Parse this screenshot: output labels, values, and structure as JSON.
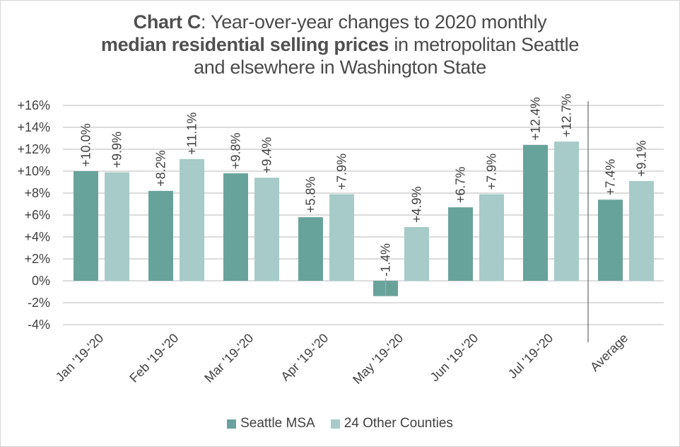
{
  "title": {
    "bold1": "Chart C",
    "rest1": ": Year-over-year changes to 2020 monthly",
    "bold2": "median residential selling prices",
    "rest2": " in metropolitan Seattle",
    "line3": "and elsewhere in Washington State"
  },
  "chart_data": {
    "type": "bar",
    "title": "Chart C: Year-over-year changes to 2020 monthly median residential selling prices in metropolitan Seattle and elsewhere in Washington State",
    "xlabel": "",
    "ylabel": "",
    "categories": [
      "Jan '19-'20",
      "Feb '19-'20",
      "Mar '19-'20",
      "Apr '19-'20",
      "May '19-'20",
      "Jun '19-'20",
      "Jul '19-'20",
      "Average"
    ],
    "series": [
      {
        "name": "Seattle MSA",
        "color": "#68A39B",
        "values": [
          10.0,
          8.2,
          9.8,
          5.8,
          -1.4,
          6.7,
          12.4,
          7.4
        ],
        "labels": [
          "+10.0%",
          "+8.2%",
          "+9.8%",
          "+5.8%",
          "-1.4%",
          "+6.7%",
          "+12.4%",
          "+7.4%"
        ]
      },
      {
        "name": "24 Other Counties",
        "color": "#A6CBC8",
        "values": [
          9.9,
          11.1,
          9.4,
          7.9,
          4.9,
          7.9,
          12.7,
          9.1
        ],
        "labels": [
          "+9.9%",
          "+11.1%",
          "+9.4%",
          "+7.9%",
          "+4.9%",
          "+7.9%",
          "+12.7%",
          "+9.1%"
        ]
      }
    ],
    "ylim": [
      -4,
      16
    ],
    "yticks": [
      16,
      14,
      12,
      10,
      8,
      6,
      4,
      2,
      0,
      -2,
      -4
    ],
    "ytick_labels": [
      "+16%",
      "+14%",
      "+12%",
      "+10%",
      "+8%",
      "+6%",
      "+4%",
      "+2%",
      "0%",
      "-2%",
      "-4%"
    ],
    "grid": true,
    "separator_before_category": "Average",
    "legend_position": "bottom",
    "data_labels": "rotated-vertical above bars"
  }
}
